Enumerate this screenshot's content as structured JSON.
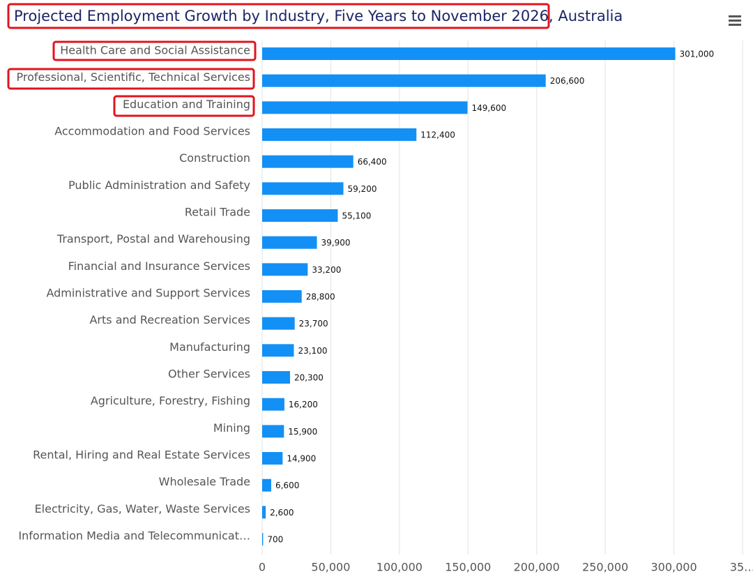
{
  "chart_data": {
    "type": "bar",
    "orientation": "horizontal",
    "title": "Projected Employment Growth by Industry, Five Years to November 2026, Australia",
    "categories": [
      "Health Care and Social Assistance",
      "Professional, Scientific, Technical Services",
      "Education and Training",
      "Accommodation and Food Services",
      "Construction",
      "Public Administration and Safety",
      "Retail Trade",
      "Transport, Postal and Warehousing",
      "Financial and Insurance Services",
      "Administrative and Support Services",
      "Arts and Recreation Services",
      "Manufacturing",
      "Other Services",
      "Agriculture, Forestry, Fishing",
      "Mining",
      "Rental, Hiring and Real Estate Services",
      "Wholesale Trade",
      "Electricity, Gas, Water, Waste Services",
      "Information Media and Telecommunicat…"
    ],
    "values": [
      301000,
      206600,
      149600,
      112400,
      66400,
      59200,
      55100,
      39900,
      33200,
      28800,
      23700,
      23100,
      20300,
      16200,
      15900,
      14900,
      6600,
      2600,
      700
    ],
    "value_labels": [
      "301,000",
      "206,600",
      "149,600",
      "112,400",
      "66,400",
      "59,200",
      "55,100",
      "39,900",
      "33,200",
      "28,800",
      "23,700",
      "23,100",
      "20,300",
      "16,200",
      "15,900",
      "14,900",
      "6,600",
      "2,600",
      "700"
    ],
    "color": "#1390f5",
    "xlim": [
      0,
      350000
    ],
    "xticks": [
      0,
      {
        "value": 50000,
        "label": "50,000"
      },
      {
        "value": 100000,
        "label": "100,000"
      },
      {
        "value": 150000,
        "label": "150,000"
      },
      {
        "value": 200000,
        "label": "200,000"
      },
      {
        "value": 250000,
        "label": "250,000"
      },
      {
        "value": 300000,
        "label": "300,000"
      },
      {
        "value": 350000,
        "label": "35…"
      }
    ],
    "grid": true
  }
}
